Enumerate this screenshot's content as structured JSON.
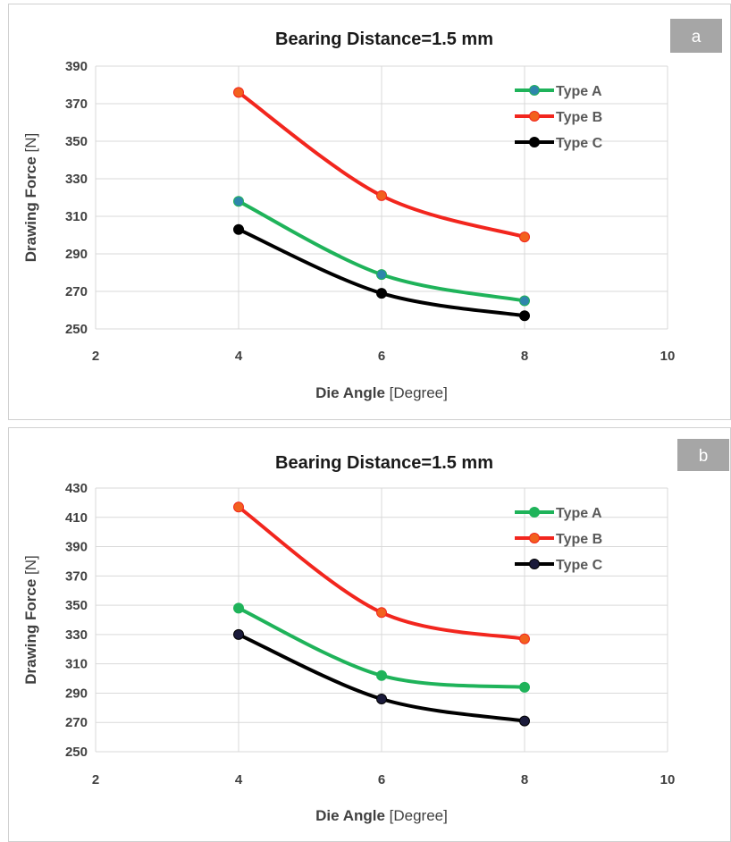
{
  "chart_data": [
    {
      "panel_label": "a",
      "type": "line",
      "title": "Bearing Distance=1.5 mm",
      "xlabel": "Die Angle",
      "xlabel_unit": "[Degree]",
      "ylabel": "Drawing Force",
      "ylabel_unit": "[N]",
      "xlim": [
        2,
        10
      ],
      "ylim": [
        250,
        390
      ],
      "x_ticks": [
        2,
        4,
        6,
        8,
        10
      ],
      "y_ticks": [
        250,
        270,
        290,
        310,
        330,
        350,
        370,
        390
      ],
      "grid": true,
      "legend_position": "top-right",
      "x": [
        4,
        6,
        8
      ],
      "series": [
        {
          "name": "Type A",
          "values": [
            318,
            279,
            265
          ],
          "color": "#1fb35a",
          "marker_color": "#2e86ab"
        },
        {
          "name": "Type B",
          "values": [
            376,
            321,
            299
          ],
          "color": "#f2261e",
          "marker_color": "#f2611e"
        },
        {
          "name": "Type C",
          "values": [
            303,
            269,
            257
          ],
          "color": "#000000",
          "marker_color": "#000000"
        }
      ]
    },
    {
      "panel_label": "b",
      "type": "line",
      "title": "Bearing Distance=1.5 mm",
      "xlabel": "Die Angle",
      "xlabel_unit": "[Degree]",
      "ylabel": "Drawing Force",
      "ylabel_unit": "[N]",
      "xlim": [
        2,
        10
      ],
      "ylim": [
        250,
        430
      ],
      "x_ticks": [
        2,
        4,
        6,
        8,
        10
      ],
      "y_ticks": [
        250,
        270,
        290,
        310,
        330,
        350,
        370,
        390,
        410,
        430
      ],
      "grid": true,
      "legend_position": "top-right",
      "x": [
        4,
        6,
        8
      ],
      "series": [
        {
          "name": "Type A",
          "values": [
            348,
            302,
            294
          ],
          "color": "#1fb35a",
          "marker_color": "#1fb35a"
        },
        {
          "name": "Type B",
          "values": [
            417,
            345,
            327
          ],
          "color": "#f2261e",
          "marker_color": "#f2611e"
        },
        {
          "name": "Type C",
          "values": [
            330,
            286,
            271
          ],
          "color": "#000000",
          "marker_color": "#1a1a3a"
        }
      ]
    }
  ]
}
